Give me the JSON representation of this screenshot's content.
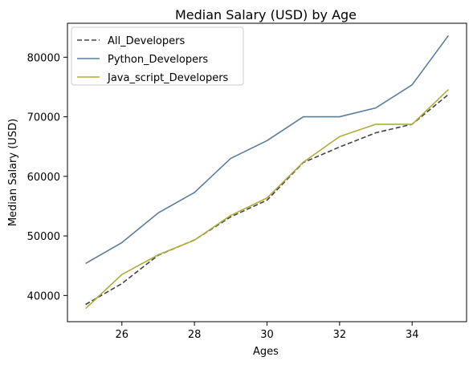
{
  "chart_data": {
    "type": "line",
    "title": "Median Salary (USD) by Age",
    "xlabel": "Ages",
    "ylabel": "Median Salary (USD)",
    "x": [
      25,
      26,
      27,
      28,
      29,
      30,
      31,
      32,
      33,
      34,
      35
    ],
    "xlim": [
      24.5,
      35.5
    ],
    "ylim": [
      35600,
      85700
    ],
    "xticks": [
      26,
      28,
      30,
      32,
      34
    ],
    "yticks": [
      40000,
      50000,
      60000,
      70000,
      80000
    ],
    "xtick_labels": [
      "26",
      "28",
      "30",
      "32",
      "34"
    ],
    "ytick_labels": [
      "40000",
      "50000",
      "60000",
      "70000",
      "80000"
    ],
    "grid": false,
    "legend_position": "top-left",
    "series": [
      {
        "name": "All_Developers",
        "color": "#444444",
        "style": "dashed",
        "values": [
          38496,
          42000,
          46752,
          49320,
          53200,
          56000,
          62316,
          64928,
          67317,
          68748,
          73752
        ]
      },
      {
        "name": "Python_Developers",
        "color": "#5a7d9a",
        "style": "solid",
        "values": [
          45372,
          48876,
          53850,
          57287,
          63016,
          65998,
          70003,
          70000,
          71496,
          75370,
          83640
        ]
      },
      {
        "name": "Java_script_Developers",
        "color": "#adad3b",
        "style": "solid",
        "values": [
          37810,
          43515,
          46823,
          49293,
          53437,
          56373,
          62375,
          66674,
          68745,
          68746,
          74583
        ]
      }
    ]
  }
}
